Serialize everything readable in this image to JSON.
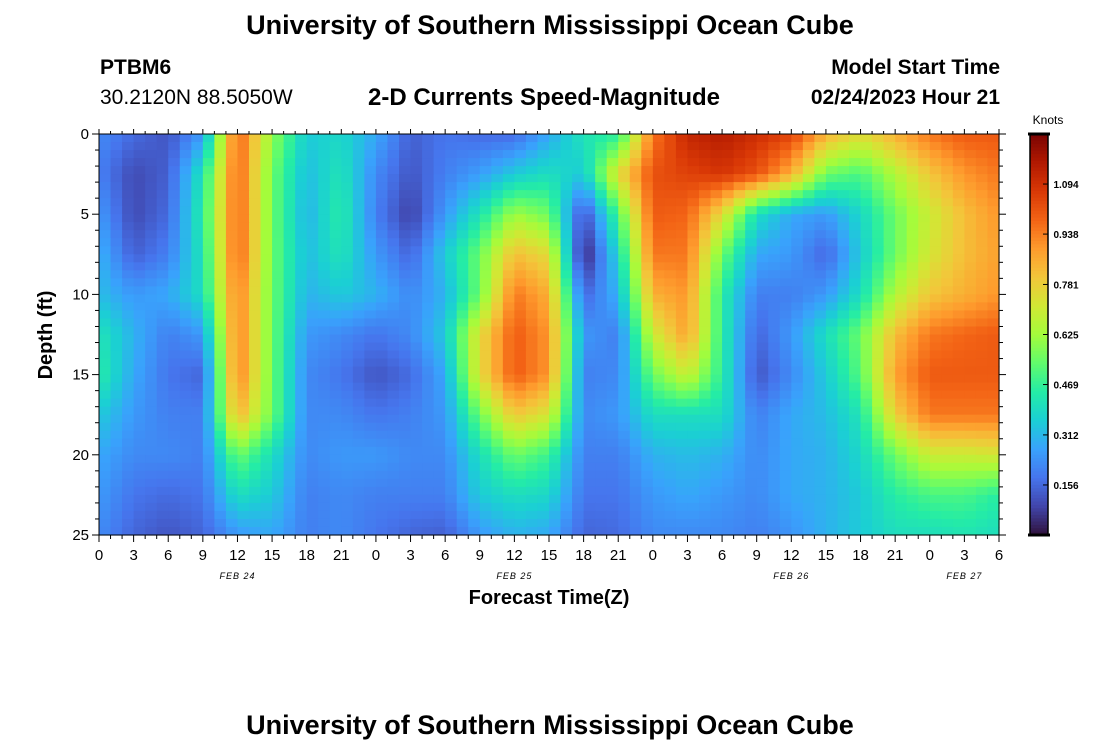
{
  "header": {
    "title": "University of Southern Mississippi Ocean Cube",
    "station_id": "PTBM6",
    "location": "30.2120N  88.5050W",
    "subtitle": "2-D Currents Speed-Magnitude",
    "model_start_label": "Model Start Time",
    "model_start_value": "02/24/2023 Hour 21"
  },
  "footer": {
    "title": "University of Southern Mississippi Ocean Cube"
  },
  "colors": {
    "colormap": [
      "#30123b",
      "#4145ab",
      "#4675ed",
      "#39a2fc",
      "#1bcfd4",
      "#24eca6",
      "#61fc6c",
      "#a4fc3b",
      "#d1e834",
      "#f3c63a",
      "#fe9b2d",
      "#f36315",
      "#d93806",
      "#b11901",
      "#7a0403"
    ]
  },
  "chart_data": {
    "type": "heatmap",
    "title": "2-D Currents Speed-Magnitude",
    "xlabel": "Forecast Time(Z)",
    "ylabel": "Depth (ft)",
    "colorbar_label": "Knots",
    "colorbar_ticks": [
      "1.094",
      "0.938",
      "0.781",
      "0.625",
      "0.469",
      "0.312",
      "0.156"
    ],
    "colorbar_values": [
      1.094,
      0.938,
      0.781,
      0.625,
      0.469,
      0.312,
      0.156
    ],
    "zlim": [
      0,
      1.25
    ],
    "ylim": [
      0,
      25
    ],
    "y_ticks": [
      "0",
      "5",
      "10",
      "15",
      "20",
      "25"
    ],
    "y_tick_values": [
      0,
      5,
      10,
      15,
      20,
      25
    ],
    "xlim": [
      0,
      78
    ],
    "x_tick_labels": [
      "0",
      "3",
      "6",
      "9",
      "12",
      "15",
      "18",
      "21",
      "0",
      "3",
      "6",
      "9",
      "12",
      "15",
      "18",
      "21",
      "0",
      "3",
      "6",
      "9",
      "12",
      "15",
      "18",
      "21",
      "0",
      "3",
      "6"
    ],
    "x_tick_hours": [
      0,
      3,
      6,
      9,
      12,
      15,
      18,
      21,
      24,
      27,
      30,
      33,
      36,
      39,
      42,
      45,
      48,
      51,
      54,
      57,
      60,
      63,
      66,
      69,
      72,
      75,
      78
    ],
    "date_labels": [
      {
        "text": "FEB 24",
        "hour": 12
      },
      {
        "text": "FEB 25",
        "hour": 36
      },
      {
        "text": "FEB 26",
        "hour": 60
      },
      {
        "text": "FEB 27",
        "hour": 75
      }
    ],
    "depth_levels_ft": [
      0,
      2.5,
      5,
      7.5,
      10,
      12.5,
      15,
      17.5,
      20,
      22.5,
      25
    ],
    "time_hours": [
      0,
      3,
      6,
      9,
      12,
      15,
      18,
      21,
      24,
      27,
      30,
      33,
      36,
      39,
      42,
      45,
      48,
      51,
      54,
      57,
      60,
      63,
      66,
      69,
      72,
      75,
      78
    ],
    "speed_knots": [
      [
        0.22,
        0.16,
        0.12,
        0.25,
        1.0,
        0.6,
        0.35,
        0.38,
        0.28,
        0.14,
        0.18,
        0.16,
        0.16,
        0.28,
        0.42,
        0.45,
        0.95,
        1.12,
        1.15,
        1.1,
        1.05,
        0.85,
        0.75,
        0.85,
        0.95,
        1.0,
        1.0
      ],
      [
        0.2,
        0.1,
        0.14,
        0.42,
        1.0,
        0.55,
        0.32,
        0.42,
        0.22,
        0.12,
        0.2,
        0.26,
        0.35,
        0.4,
        0.35,
        0.75,
        1.02,
        1.05,
        1.08,
        1.02,
        0.85,
        0.55,
        0.5,
        0.65,
        0.8,
        0.9,
        0.95
      ],
      [
        0.25,
        0.1,
        0.16,
        0.45,
        1.0,
        0.55,
        0.3,
        0.45,
        0.2,
        0.08,
        0.25,
        0.42,
        0.62,
        0.55,
        0.1,
        0.5,
        1.0,
        0.98,
        0.75,
        0.4,
        0.28,
        0.25,
        0.38,
        0.55,
        0.7,
        0.82,
        0.9
      ],
      [
        0.3,
        0.14,
        0.2,
        0.42,
        1.0,
        0.55,
        0.32,
        0.42,
        0.25,
        0.15,
        0.35,
        0.55,
        0.82,
        0.75,
        0.02,
        0.38,
        0.95,
        0.95,
        0.55,
        0.28,
        0.25,
        0.15,
        0.35,
        0.55,
        0.72,
        0.82,
        0.88
      ],
      [
        0.32,
        0.25,
        0.28,
        0.4,
        0.95,
        0.55,
        0.3,
        0.35,
        0.3,
        0.22,
        0.3,
        0.55,
        0.95,
        0.85,
        0.15,
        0.3,
        0.85,
        0.9,
        0.45,
        0.2,
        0.2,
        0.25,
        0.4,
        0.65,
        0.8,
        0.85,
        0.9
      ],
      [
        0.42,
        0.3,
        0.2,
        0.25,
        0.95,
        0.55,
        0.25,
        0.22,
        0.18,
        0.22,
        0.35,
        0.75,
        1.0,
        0.9,
        0.25,
        0.2,
        0.7,
        0.88,
        0.45,
        0.15,
        0.25,
        0.4,
        0.55,
        0.82,
        0.95,
        0.98,
        1.0
      ],
      [
        0.45,
        0.28,
        0.18,
        0.15,
        0.95,
        0.55,
        0.22,
        0.18,
        0.12,
        0.16,
        0.28,
        0.75,
        1.0,
        0.9,
        0.2,
        0.22,
        0.55,
        0.7,
        0.45,
        0.12,
        0.22,
        0.35,
        0.52,
        0.88,
        1.0,
        1.0,
        1.0
      ],
      [
        0.35,
        0.25,
        0.2,
        0.2,
        0.85,
        0.55,
        0.22,
        0.22,
        0.18,
        0.2,
        0.25,
        0.55,
        0.8,
        0.72,
        0.22,
        0.25,
        0.4,
        0.4,
        0.4,
        0.2,
        0.28,
        0.32,
        0.42,
        0.78,
        0.95,
        0.95,
        0.95
      ],
      [
        0.28,
        0.22,
        0.22,
        0.2,
        0.55,
        0.4,
        0.22,
        0.25,
        0.25,
        0.22,
        0.22,
        0.4,
        0.55,
        0.48,
        0.2,
        0.2,
        0.3,
        0.32,
        0.3,
        0.22,
        0.28,
        0.3,
        0.38,
        0.55,
        0.7,
        0.7,
        0.72
      ],
      [
        0.25,
        0.18,
        0.16,
        0.18,
        0.4,
        0.35,
        0.2,
        0.22,
        0.2,
        0.2,
        0.2,
        0.35,
        0.4,
        0.38,
        0.18,
        0.18,
        0.25,
        0.28,
        0.25,
        0.22,
        0.28,
        0.3,
        0.35,
        0.45,
        0.5,
        0.5,
        0.45
      ],
      [
        0.22,
        0.15,
        0.12,
        0.15,
        0.25,
        0.28,
        0.2,
        0.22,
        0.18,
        0.15,
        0.14,
        0.25,
        0.3,
        0.28,
        0.15,
        0.16,
        0.22,
        0.22,
        0.22,
        0.2,
        0.24,
        0.3,
        0.35,
        0.4,
        0.4,
        0.42,
        0.4
      ]
    ]
  }
}
